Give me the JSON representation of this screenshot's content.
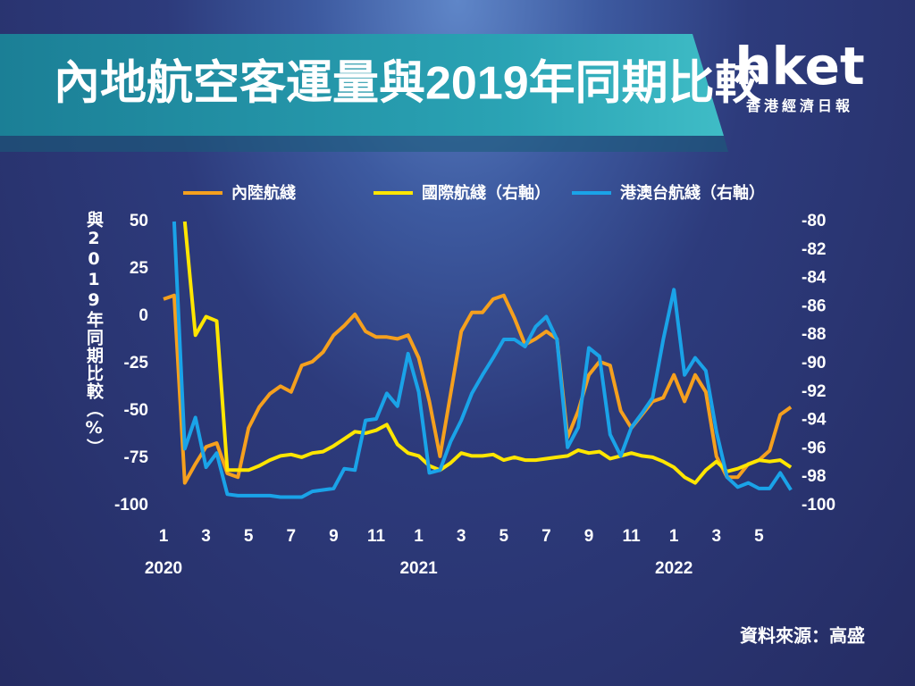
{
  "header": {
    "title": "內地航空客運量與2019年同期比較",
    "logo": "hket",
    "logo_subtitle": "香港經濟日報"
  },
  "footer": {
    "source": "資料來源：高盛"
  },
  "chart_data": {
    "type": "line",
    "y_label": "與2019年同期比較（%）",
    "x": [
      0,
      0.5,
      1,
      1.5,
      2,
      2.5,
      3,
      3.5,
      4,
      4.5,
      5,
      5.5,
      6,
      6.5,
      7,
      7.5,
      8,
      8.5,
      9,
      9.5,
      10,
      10.5,
      11,
      11.5,
      12,
      12.5,
      13,
      13.5,
      14,
      14.5,
      15,
      15.5,
      16,
      16.5,
      17,
      17.5,
      18,
      18.5,
      19,
      19.5,
      20,
      20.5,
      21,
      21.5,
      22,
      22.5,
      23,
      23.5,
      24,
      24.5,
      25,
      25.5,
      26,
      26.5,
      27,
      27.5,
      28,
      28.5,
      29,
      29.5
    ],
    "xlim": [
      0,
      29.5
    ],
    "xticks": [
      {
        "value": 0,
        "label": "1"
      },
      {
        "value": 2,
        "label": "3"
      },
      {
        "value": 4,
        "label": "5"
      },
      {
        "value": 6,
        "label": "7"
      },
      {
        "value": 8,
        "label": "9"
      },
      {
        "value": 10,
        "label": "11"
      },
      {
        "value": 12,
        "label": "1"
      },
      {
        "value": 14,
        "label": "3"
      },
      {
        "value": 16,
        "label": "5"
      },
      {
        "value": 18,
        "label": "7"
      },
      {
        "value": 20,
        "label": "9"
      },
      {
        "value": 22,
        "label": "11"
      },
      {
        "value": 24,
        "label": "1"
      },
      {
        "value": 26,
        "label": "3"
      },
      {
        "value": 28,
        "label": "5"
      }
    ],
    "x_year_labels": [
      {
        "value": 0,
        "label": "2020"
      },
      {
        "value": 12,
        "label": "2021"
      },
      {
        "value": 24,
        "label": "2022"
      }
    ],
    "ylim": [
      -100,
      50
    ],
    "yticks": [
      50,
      25,
      0,
      -25,
      -50,
      -75,
      -100
    ],
    "y2lim": [
      -100,
      -80
    ],
    "y2ticks": [
      -80,
      -82,
      -84,
      -86,
      -88,
      -90,
      -92,
      -94,
      -96,
      -98,
      -100
    ],
    "legend": "top",
    "series": [
      {
        "name": "內陸航綫",
        "color": "#f5a01e",
        "values": [
          9,
          11,
          -88,
          -78,
          -69,
          -67,
          -83,
          -85,
          -59,
          -48,
          -41,
          -37,
          -40,
          -26,
          -24,
          -19,
          -10,
          -5,
          1,
          -8,
          -11,
          -11,
          -12,
          -10,
          -22,
          -45,
          -74,
          -41,
          -8,
          2,
          2,
          9,
          11,
          -1,
          -15,
          -12,
          -8,
          -12,
          -64,
          -50,
          -31,
          -24,
          -26,
          -50,
          -59,
          -52,
          -45,
          -43,
          -31,
          -45,
          -31,
          -40,
          -74,
          -85,
          -85,
          -78,
          -76,
          -71,
          -52,
          -48
        ]
      },
      {
        "name": "國際航綫（右軸）",
        "color": "#ffe600",
        "axis": "y2",
        "values": [
          null,
          null,
          -80,
          -88,
          -86.7,
          -87,
          -97.5,
          -97.5,
          -97.5,
          -97.2,
          -96.8,
          -96.5,
          -96.4,
          -96.6,
          -96.3,
          -96.2,
          -95.8,
          -95.3,
          -94.8,
          -94.9,
          -94.7,
          -94.3,
          -95.7,
          -96.3,
          -96.5,
          -97.2,
          -97.5,
          -97,
          -96.3,
          -96.5,
          -96.5,
          -96.4,
          -96.8,
          -96.6,
          -96.8,
          -96.8,
          -96.7,
          -96.6,
          -96.5,
          -96.1,
          -96.3,
          -96.2,
          -96.7,
          -96.5,
          -96.3,
          -96.5,
          -96.6,
          -96.9,
          -97.3,
          -98,
          -98.4,
          -97.5,
          -96.9,
          -97.6,
          -97.4,
          -97.1,
          -96.8,
          -96.9,
          -96.8,
          -97.3
        ]
      },
      {
        "name": "港澳台航綫（右軸）",
        "color": "#1aa3e8",
        "axis": "y2",
        "values": [
          null,
          -80,
          -96,
          -93.8,
          -97.3,
          -96.3,
          -99.2,
          -99.3,
          -99.3,
          -99.3,
          -99.3,
          -99.4,
          -99.4,
          -99.4,
          -99,
          -98.9,
          -98.8,
          -97.4,
          -97.5,
          -94,
          -93.9,
          -92.1,
          -93,
          -89.3,
          -92,
          -97.7,
          -97.5,
          -95.5,
          -94,
          -92.1,
          -90.8,
          -89.6,
          -88.3,
          -88.3,
          -88.8,
          -87.4,
          -86.7,
          -88.3,
          -95.9,
          -94.5,
          -88.9,
          -89.5,
          -95,
          -96.5,
          -94.5,
          -93.5,
          -92.4,
          -88.3,
          -84.8,
          -90.8,
          -89.6,
          -90.5,
          -94.8,
          -98,
          -98.7,
          -98.4,
          -98.8,
          -98.8,
          -97.7,
          -98.9
        ]
      }
    ]
  }
}
